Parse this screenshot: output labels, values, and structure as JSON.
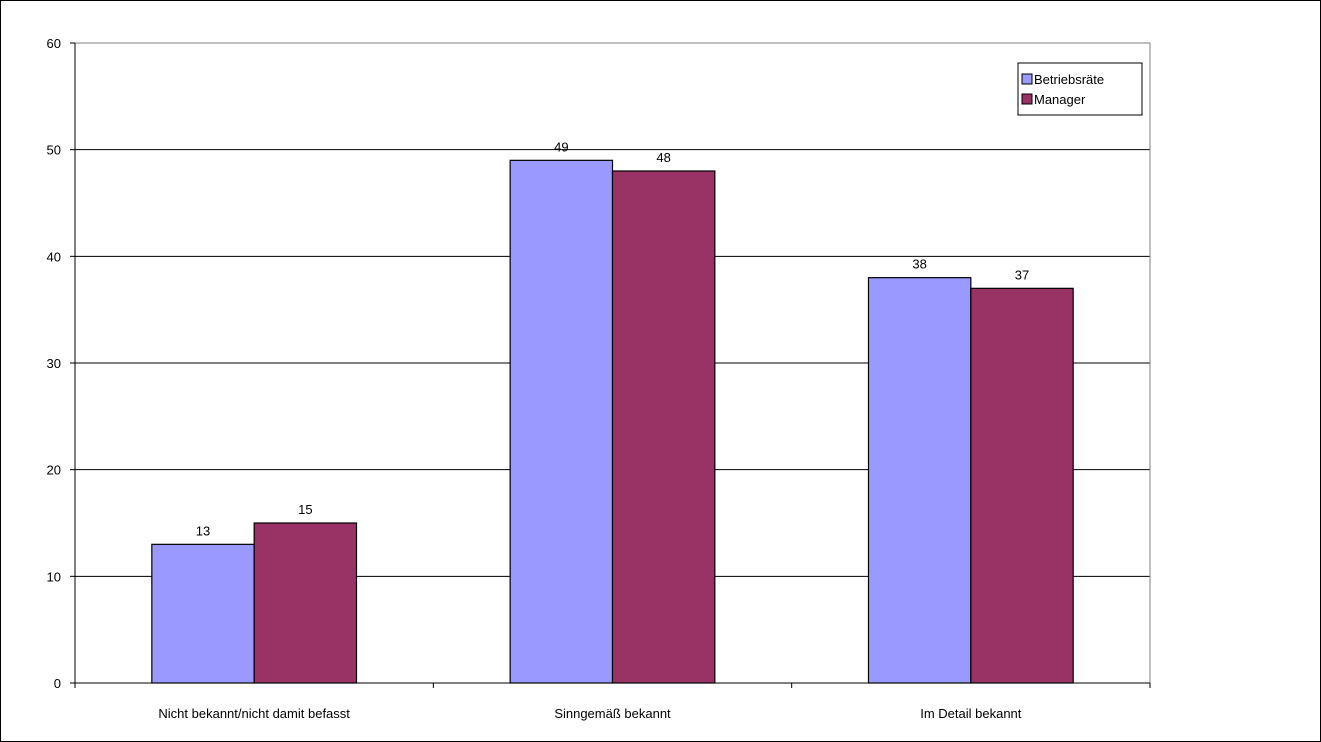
{
  "chart_data": {
    "type": "bar",
    "title": "",
    "xlabel": "",
    "ylabel": "",
    "categories": [
      "Nicht bekannt/nicht damit befasst",
      "Sinngemäß bekannt",
      "Im Detail bekannt"
    ],
    "series": [
      {
        "name": "Betriebsräte",
        "values": [
          13,
          49,
          38
        ],
        "color": "#9999ff"
      },
      {
        "name": "Manager",
        "values": [
          15,
          48,
          37
        ],
        "color": "#993366"
      }
    ],
    "ylim": [
      0,
      60
    ],
    "yticks": [
      "0",
      "10",
      "20",
      "30",
      "40",
      "50",
      "60"
    ],
    "grid": true,
    "legend_position": "top-right",
    "data_labels": true
  }
}
